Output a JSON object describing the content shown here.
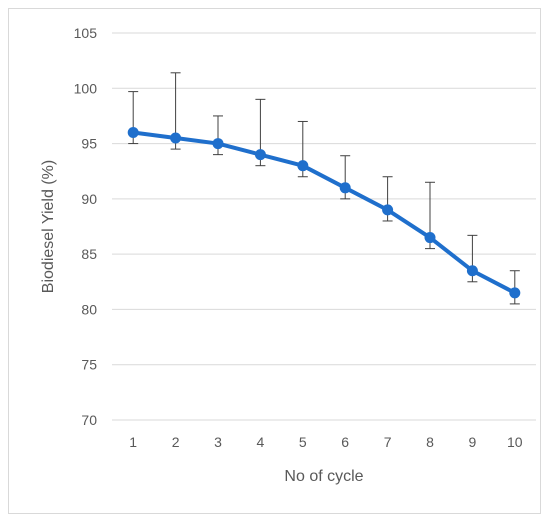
{
  "chart_data": {
    "type": "line",
    "title": "",
    "xlabel": "No of cycle",
    "ylabel": "Biodiesel Yield (%)",
    "x": [
      1,
      2,
      3,
      4,
      5,
      6,
      7,
      8,
      9,
      10
    ],
    "xticks": [
      "1",
      "2",
      "3",
      "4",
      "5",
      "6",
      "7",
      "8",
      "9",
      "10"
    ],
    "ylim": [
      70,
      105
    ],
    "yticks": [
      "70",
      "75",
      "80",
      "85",
      "90",
      "95",
      "100",
      "105"
    ],
    "grid": "horizontal",
    "series": [
      {
        "values": [
          96,
          95.5,
          95,
          94,
          93,
          91,
          89,
          86.5,
          83.5,
          81.5
        ],
        "error_plus": [
          3.7,
          5.9,
          2.5,
          5.0,
          4.0,
          2.9,
          3.0,
          5.0,
          3.2,
          2.0
        ],
        "error_minus": [
          1.0,
          1.0,
          1.0,
          1.0,
          1.0,
          1.0,
          1.0,
          1.0,
          1.0,
          1.0
        ],
        "color": "#1f6fcc"
      }
    ]
  }
}
